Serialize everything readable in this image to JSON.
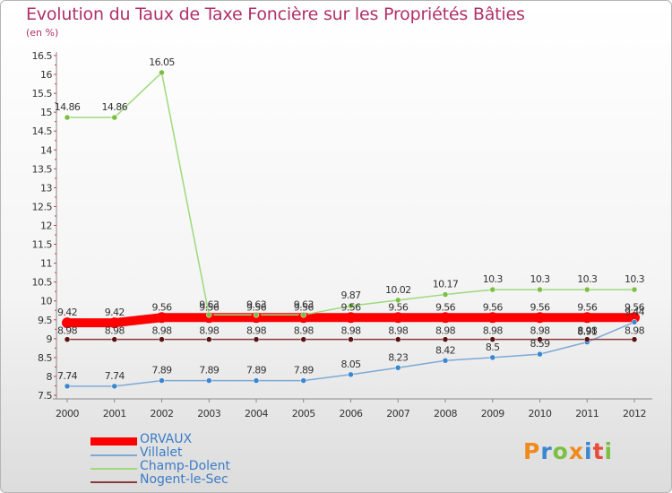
{
  "header": {
    "title": "Evolution du Taux de Taxe Foncière sur les Propriétés Bâties",
    "unit": "(en %)"
  },
  "brand": {
    "letters": [
      "P",
      "r",
      "o",
      "x",
      "i",
      "t",
      "i"
    ],
    "colors": [
      "#f08a1c",
      "#3a86d0",
      "#7bc043",
      "#f08a1c",
      "#3a86d0",
      "#e84c3d",
      "#7bc043"
    ]
  },
  "chart_data": {
    "type": "line",
    "title": "Evolution du Taux de Taxe Foncière sur les Propriétés Bâties",
    "ylabel": "(en %)",
    "xlabel": "",
    "ylim": [
      7.5,
      16.5
    ],
    "yticks": [
      "7.5",
      "8",
      "8.5",
      "9",
      "9.5",
      "10",
      "10.5",
      "11",
      "11.5",
      "12",
      "12.5",
      "13",
      "13.5",
      "14",
      "14.5",
      "15",
      "15.5",
      "16",
      "16.5"
    ],
    "categories": [
      "2000",
      "2001",
      "2002",
      "2003",
      "2004",
      "2005",
      "2006",
      "2007",
      "2008",
      "2009",
      "2010",
      "2011",
      "2012"
    ],
    "grid": false,
    "legend_position": "bottom-left",
    "series": [
      {
        "name": "ORVAUX",
        "color": "#ff0000",
        "width": 10,
        "values": [
          9.42,
          9.42,
          9.56,
          9.56,
          9.56,
          9.56,
          9.56,
          9.56,
          9.56,
          9.56,
          9.56,
          9.56,
          9.56
        ],
        "labels": [
          "9.42",
          "9.42",
          "9.56",
          "9.56",
          "9.56",
          "9.56",
          "9.56",
          "9.56",
          "9.56",
          "9.56",
          "9.56",
          "9.56",
          "9.56"
        ]
      },
      {
        "name": "Villalet",
        "color": "#7ea9d6",
        "width": 1.5,
        "marker": "#3a86d0",
        "values": [
          7.74,
          7.74,
          7.89,
          7.89,
          7.89,
          7.89,
          8.05,
          8.23,
          8.42,
          8.5,
          8.59,
          8.91,
          9.44
        ],
        "labels": [
          "7.74",
          "7.74",
          "7.89",
          "7.89",
          "7.89",
          "7.89",
          "8.05",
          "8.23",
          "8.42",
          "8.5",
          "8.59",
          "8.91",
          "9.44"
        ]
      },
      {
        "name": "Champ-Dolent",
        "color": "#9ed97a",
        "width": 1.5,
        "marker": "#7bc043",
        "values": [
          14.86,
          14.86,
          16.05,
          9.63,
          9.63,
          9.63,
          9.87,
          10.02,
          10.17,
          10.3,
          10.3,
          10.3,
          10.3
        ],
        "labels": [
          "14.86",
          "14.86",
          "16.05",
          "9.63",
          "9.63",
          "9.63",
          "9.87",
          "10.02",
          "10.17",
          "10.3",
          "10.3",
          "10.3",
          "10.3"
        ]
      },
      {
        "name": "Nogent-le-Sec",
        "color": "#8a3a3a",
        "width": 1.5,
        "marker": "#5a1010",
        "values": [
          8.98,
          8.98,
          8.98,
          8.98,
          8.98,
          8.98,
          8.98,
          8.98,
          8.98,
          8.98,
          8.98,
          8.98,
          8.98
        ],
        "labels": [
          "8.98",
          "8.98",
          "8.98",
          "8.98",
          "8.98",
          "8.98",
          "8.98",
          "8.98",
          "8.98",
          "8.98",
          "8.98",
          "8.98",
          "8.98"
        ]
      }
    ]
  }
}
